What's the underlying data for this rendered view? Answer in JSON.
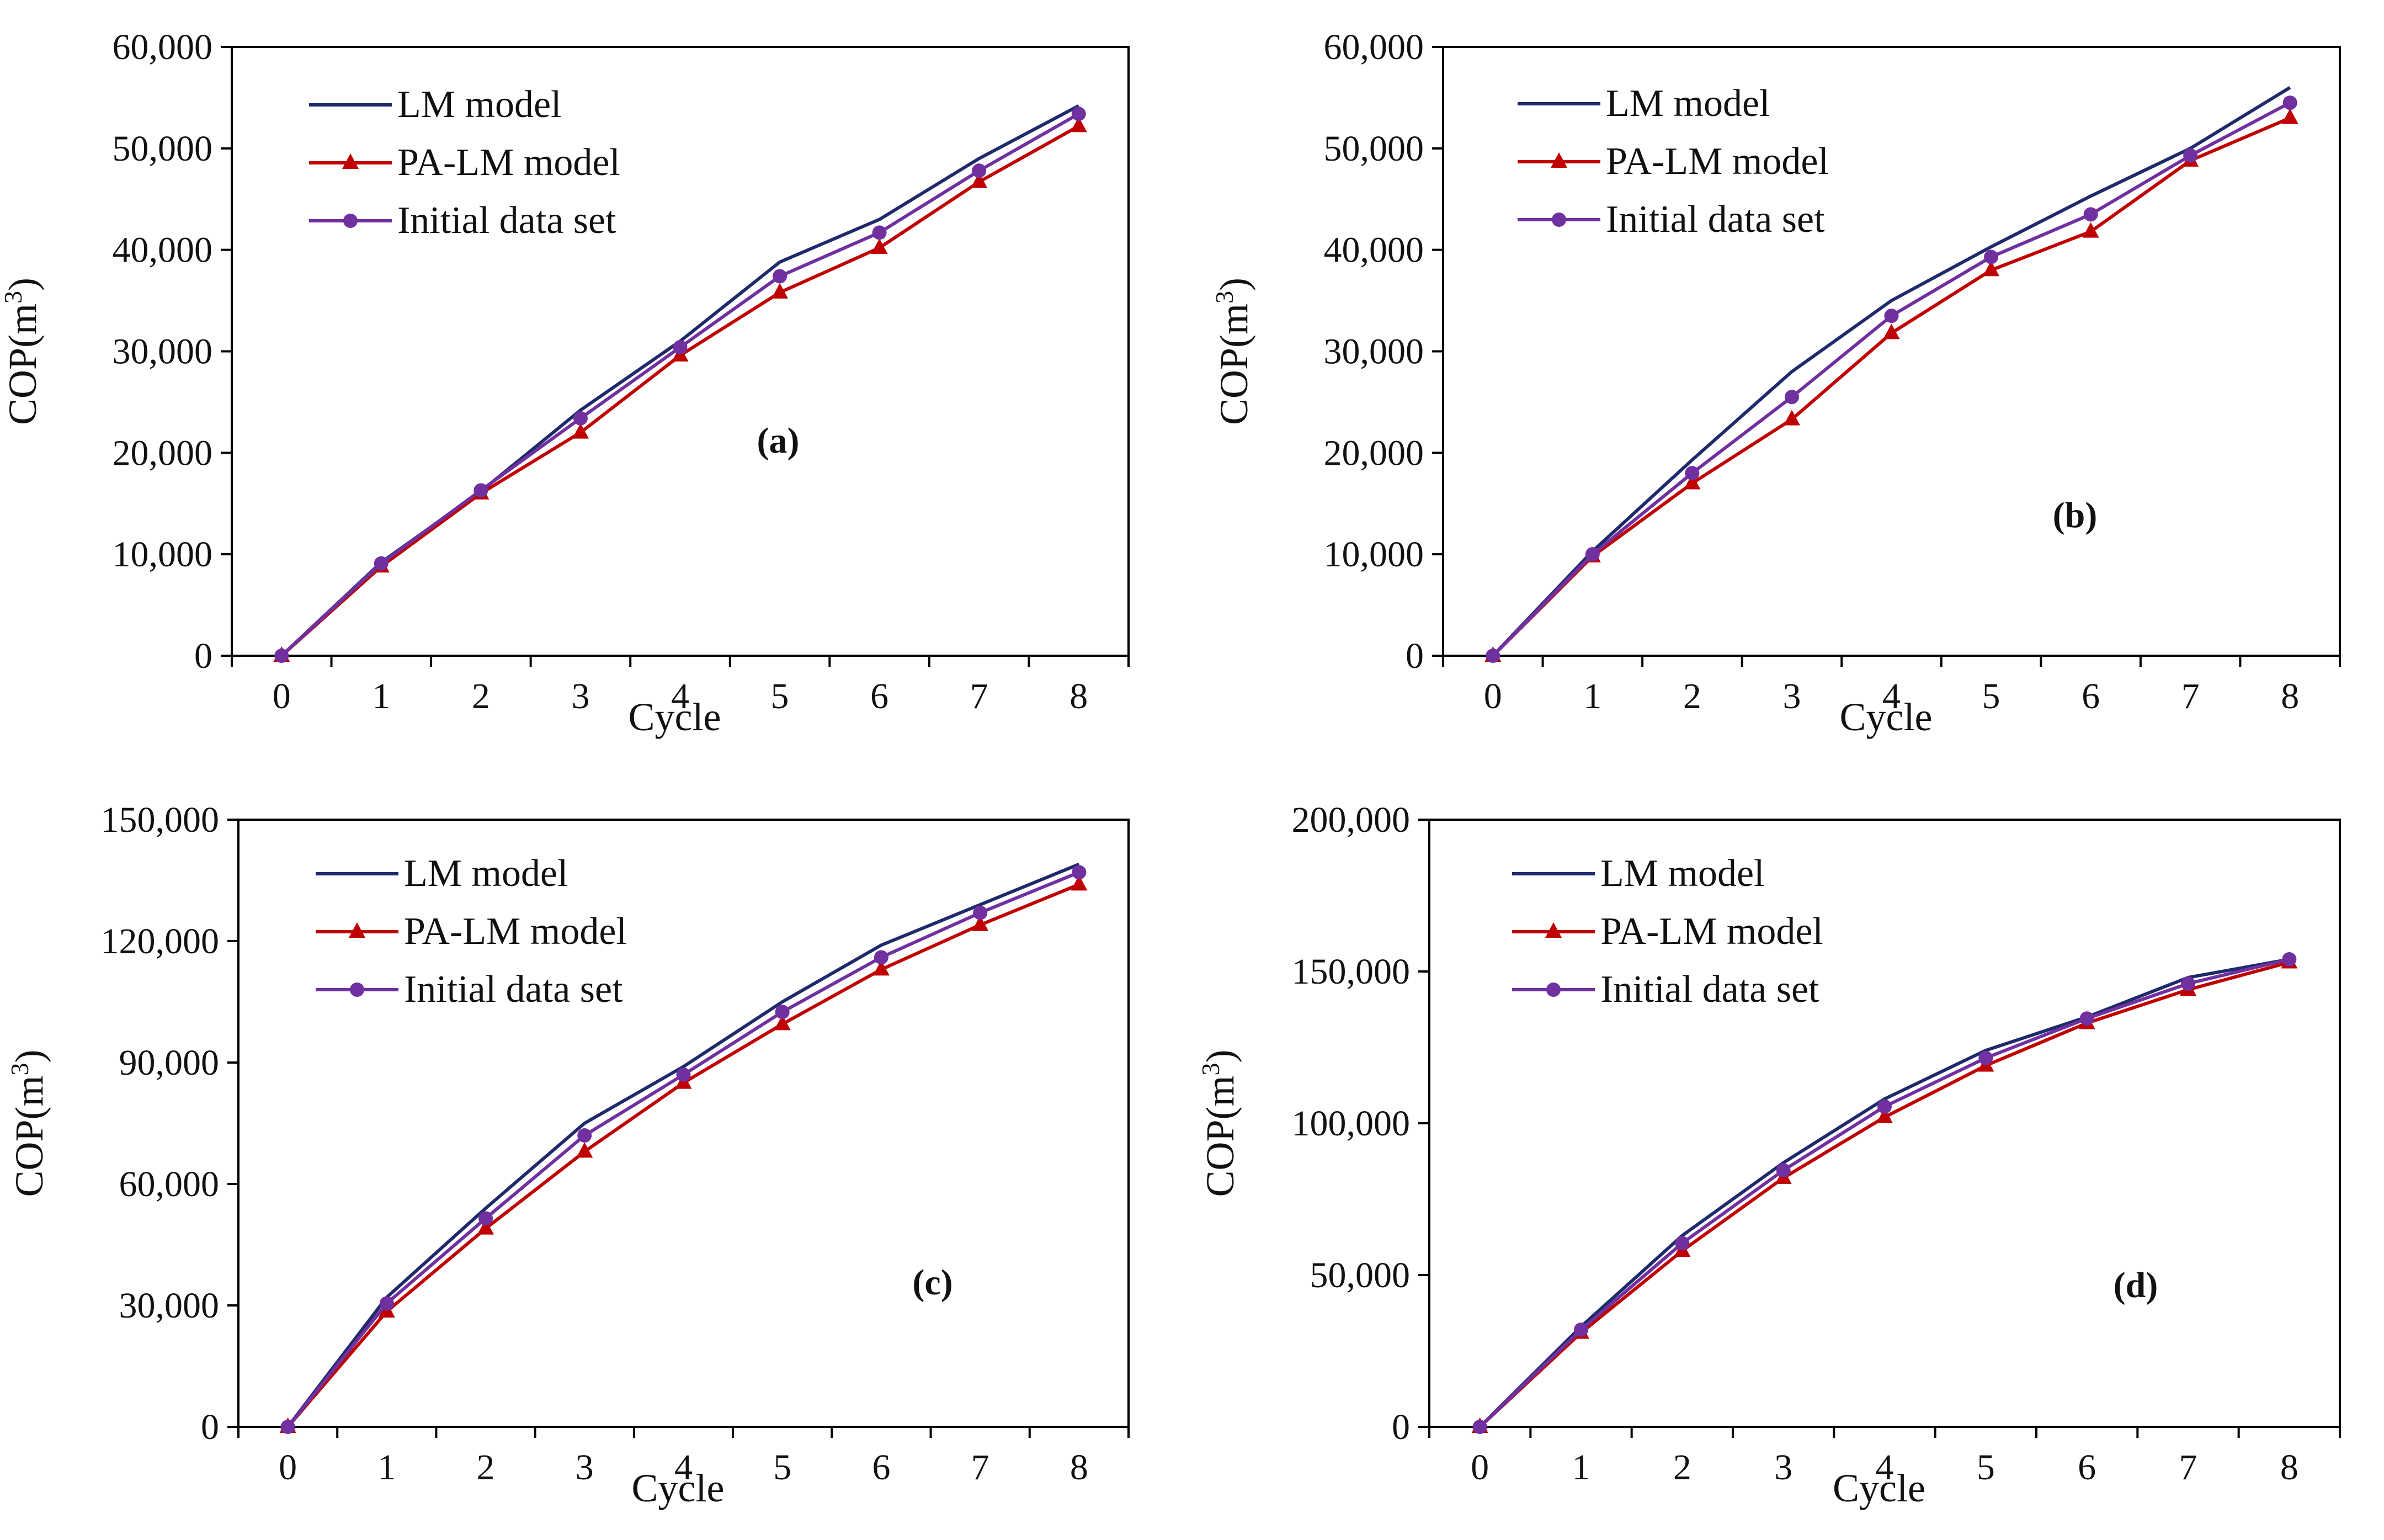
{
  "colors": {
    "lm_model": "#1f2a6b",
    "pa_lm_model": "#c00000",
    "initial_data_set": "#7030a0",
    "axis": "#000000"
  },
  "chart_data": [
    {
      "type": "line",
      "panel_label": "(a)",
      "xlabel": "Cycle",
      "ylabel": "COP(m3)",
      "x": [
        0,
        1,
        2,
        3,
        4,
        5,
        6,
        7,
        8
      ],
      "ylim": [
        0,
        60000
      ],
      "ytick_step": 10000,
      "ytick_labels": [
        "0",
        "10,000",
        "20,000",
        "30,000",
        "40,000",
        "50,000",
        "60,000"
      ],
      "xtick_labels": [
        "0",
        "1",
        "2",
        "3",
        "4",
        "5",
        "6",
        "7",
        "8"
      ],
      "series": [
        {
          "name": "LM model",
          "marker": "none",
          "values": [
            0,
            9200,
            16200,
            24200,
            31000,
            38800,
            43000,
            49000,
            54200
          ]
        },
        {
          "name": "PA-LM model",
          "marker": "triangle",
          "values": [
            0,
            8800,
            16000,
            22000,
            29600,
            35800,
            40200,
            46700,
            52200
          ]
        },
        {
          "name": "Initial data set",
          "marker": "circle",
          "values": [
            0,
            9100,
            16300,
            23400,
            30400,
            37400,
            41700,
            47800,
            53400
          ]
        }
      ]
    },
    {
      "type": "line",
      "panel_label": "(b)",
      "xlabel": "Cycle",
      "ylabel": "COP(m3)",
      "x": [
        0,
        1,
        2,
        3,
        4,
        5,
        6,
        7,
        8
      ],
      "ylim": [
        0,
        60000
      ],
      "ytick_step": 10000,
      "ytick_labels": [
        "0",
        "10,000",
        "20,000",
        "30,000",
        "40,000",
        "50,000",
        "60,000"
      ],
      "xtick_labels": [
        "0",
        "1",
        "2",
        "3",
        "4",
        "5",
        "6",
        "7",
        "8"
      ],
      "series": [
        {
          "name": "LM model",
          "marker": "none",
          "values": [
            0,
            10300,
            19300,
            28000,
            35000,
            40300,
            45300,
            50000,
            56000
          ]
        },
        {
          "name": "PA-LM model",
          "marker": "triangle",
          "values": [
            0,
            9800,
            17000,
            23300,
            31800,
            38000,
            41800,
            48800,
            53000
          ]
        },
        {
          "name": "Initial data set",
          "marker": "circle",
          "values": [
            0,
            10000,
            18000,
            25500,
            33500,
            39300,
            43500,
            49300,
            54500
          ]
        }
      ]
    },
    {
      "type": "line",
      "panel_label": "(c)",
      "xlabel": "Cycle",
      "ylabel": "COP(m3)",
      "x": [
        0,
        1,
        2,
        3,
        4,
        5,
        6,
        7,
        8
      ],
      "ylim": [
        0,
        150000
      ],
      "ytick_step": 30000,
      "ytick_labels": [
        "0",
        "30,000",
        "60,000",
        "90,000",
        "120,000",
        "150,000"
      ],
      "xtick_labels": [
        "0",
        "1",
        "2",
        "3",
        "4",
        "5",
        "6",
        "7",
        "8"
      ],
      "series": [
        {
          "name": "LM model",
          "marker": "none",
          "values": [
            0,
            32000,
            54000,
            75000,
            89000,
            105000,
            119000,
            129000,
            139000
          ]
        },
        {
          "name": "PA-LM model",
          "marker": "triangle",
          "values": [
            0,
            28500,
            49000,
            68000,
            85000,
            99500,
            113000,
            124000,
            134000
          ]
        },
        {
          "name": "Initial data set",
          "marker": "circle",
          "values": [
            0,
            30500,
            51500,
            72000,
            87000,
            102500,
            116000,
            127000,
            137000
          ]
        }
      ]
    },
    {
      "type": "line",
      "panel_label": "(d)",
      "xlabel": "Cycle",
      "ylabel": "COP(m3)",
      "x": [
        0,
        1,
        2,
        3,
        4,
        5,
        6,
        7,
        8
      ],
      "ylim": [
        0,
        200000
      ],
      "ytick_step": 50000,
      "ytick_labels": [
        "0",
        "50,000",
        "100,000",
        "150,000",
        "200,000"
      ],
      "xtick_labels": [
        "0",
        "1",
        "2",
        "3",
        "4",
        "5",
        "6",
        "7",
        "8"
      ],
      "series": [
        {
          "name": "LM model",
          "marker": "none",
          "values": [
            0,
            33000,
            63000,
            87000,
            108000,
            124000,
            135000,
            148000,
            154000
          ]
        },
        {
          "name": "PA-LM model",
          "marker": "triangle",
          "values": [
            0,
            31000,
            58000,
            82000,
            102000,
            119000,
            133000,
            144000,
            153000
          ]
        },
        {
          "name": "Initial data set",
          "marker": "circle",
          "values": [
            0,
            32000,
            60500,
            84500,
            105500,
            121500,
            134500,
            146000,
            154000
          ]
        }
      ]
    }
  ]
}
